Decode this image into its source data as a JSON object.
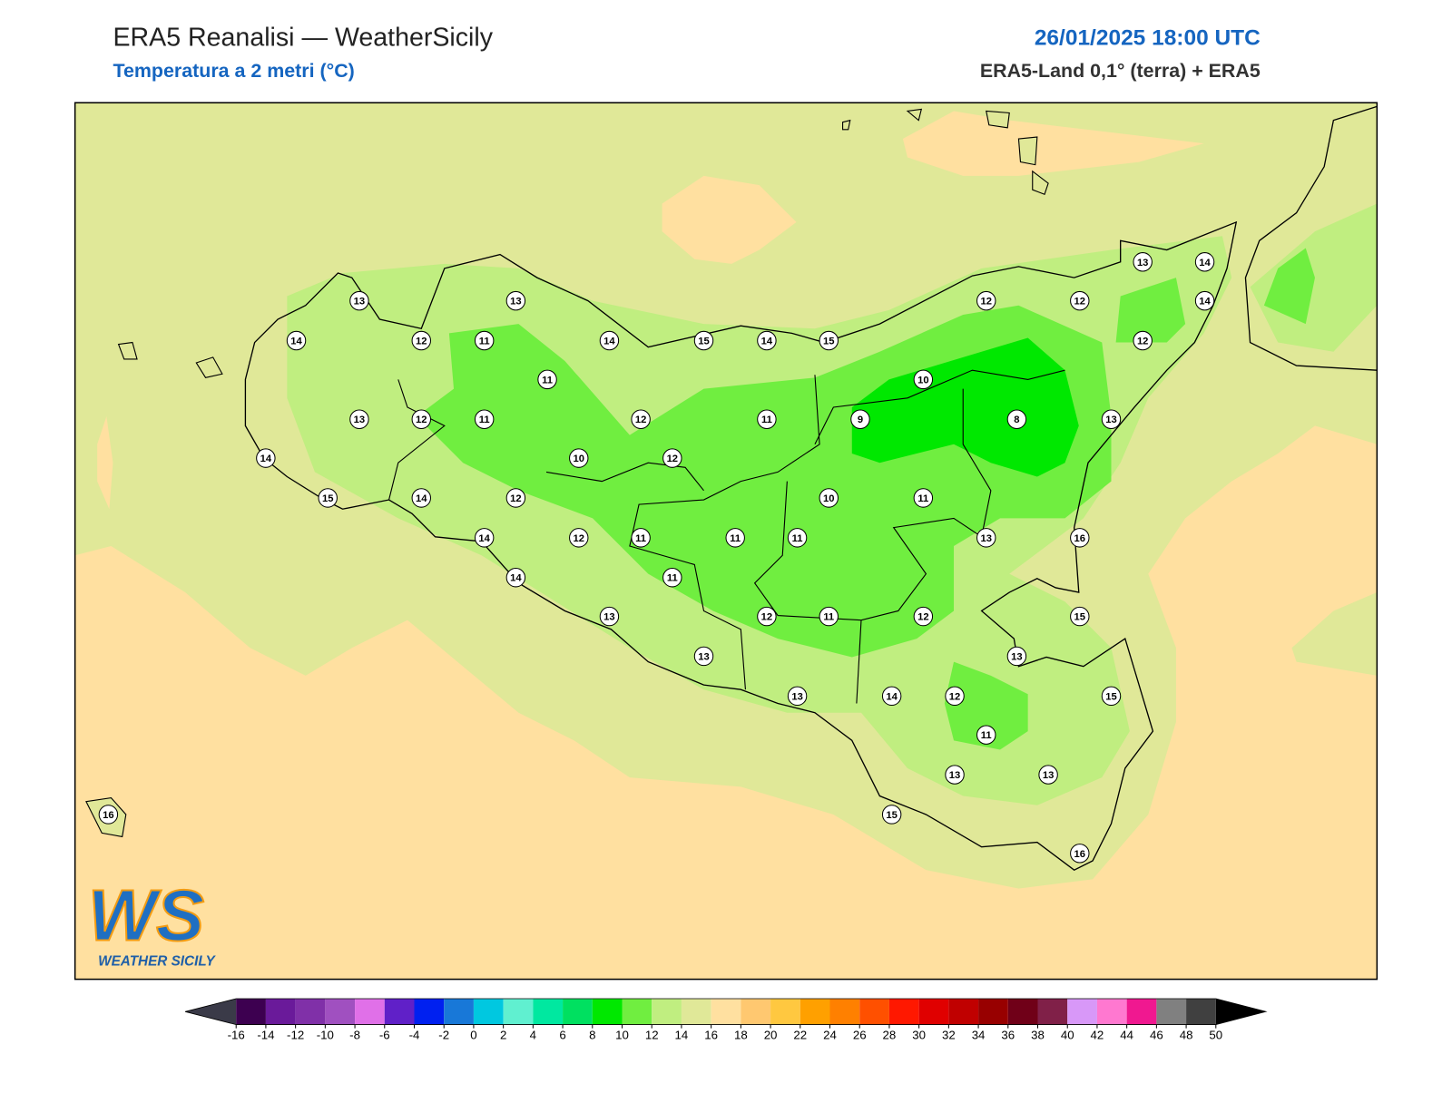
{
  "header": {
    "title": "ERA5 Reanalisi — WeatherSicily",
    "subtitle": "Temperatura a 2 metri (°C)",
    "datetime": "26/01/2025 18:00 UTC",
    "source": "ERA5-Land 0,1° (terra) + ERA5"
  },
  "map": {
    "stations": [
      13,
      13,
      14,
      12,
      11,
      14,
      15,
      14,
      15,
      13,
      14,
      12,
      12,
      14,
      12,
      11,
      10,
      13,
      12,
      11,
      12,
      11,
      9,
      8,
      13,
      14,
      10,
      12,
      15,
      14,
      12,
      10,
      11,
      14,
      12,
      11,
      11,
      11,
      13,
      16,
      14,
      11,
      13,
      12,
      11,
      12,
      15,
      13,
      13,
      13,
      14,
      12,
      15,
      11,
      13,
      13,
      16,
      15,
      16
    ]
  },
  "colorbar": {
    "ticks": [
      -16,
      -14,
      -12,
      -10,
      -8,
      -6,
      -4,
      -2,
      0,
      2,
      4,
      6,
      8,
      10,
      12,
      14,
      16,
      18,
      20,
      22,
      24,
      26,
      28,
      30,
      32,
      34,
      36,
      38,
      40,
      42,
      44,
      46,
      48,
      50
    ],
    "colors": [
      "#3d0050",
      "#6a1a9a",
      "#8030a8",
      "#a050c0",
      "#e070e8",
      "#6020c8",
      "#0020f0",
      "#1878d8",
      "#00c8e0",
      "#60f0d0",
      "#00e8a0",
      "#00e060",
      "#00e800",
      "#70ee40",
      "#c0ee80",
      "#e0e898",
      "#ffe0a0",
      "#ffc870",
      "#ffc840",
      "#ffa000",
      "#ff8000",
      "#ff5000",
      "#ff1800",
      "#e00000",
      "#c00000",
      "#980000",
      "#700018",
      "#802048",
      "#d898f8",
      "#ff78d0",
      "#f01890",
      "#808080",
      "#404040"
    ],
    "under_color": "#3a3a48",
    "over_color": "#000000"
  },
  "logo": {
    "mark": "WS",
    "text": "WEATHER SICILY"
  }
}
